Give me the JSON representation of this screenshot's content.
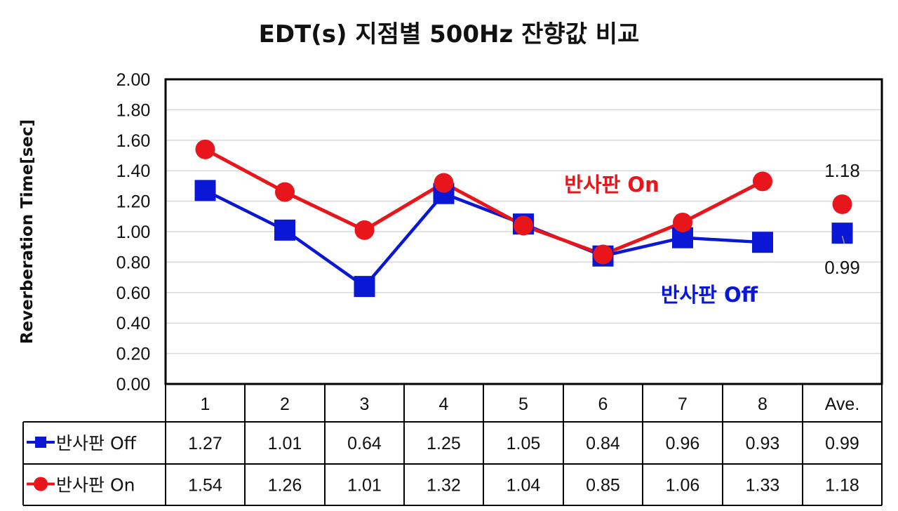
{
  "chart_data": {
    "type": "line",
    "title": "EDT(s) 지점별 500Hz 잔향값 비교",
    "ylabel": "Reverberation Time[sec]",
    "xlabel": "",
    "ylim": [
      0,
      2
    ],
    "yticks": [
      "0.00",
      "0.20",
      "0.40",
      "0.60",
      "0.80",
      "1.00",
      "1.20",
      "1.40",
      "1.60",
      "1.80",
      "2.00"
    ],
    "categories": [
      "1",
      "2",
      "3",
      "4",
      "5",
      "6",
      "7",
      "8",
      "Ave."
    ],
    "grid": true,
    "legend": "data-table-left",
    "series": [
      {
        "name": "반사판 Off",
        "color": "#0a18d6",
        "marker": "square",
        "values": [
          1.27,
          1.01,
          0.64,
          1.25,
          1.05,
          0.84,
          0.96,
          0.93,
          0.99
        ],
        "display": [
          "1.27",
          "1.01",
          "0.64",
          "1.25",
          "1.05",
          "0.84",
          "0.96",
          "0.93",
          "0.99"
        ]
      },
      {
        "name": "반사판 On",
        "color": "#e8161b",
        "marker": "circle",
        "values": [
          1.54,
          1.26,
          1.01,
          1.32,
          1.04,
          0.85,
          1.06,
          1.33,
          1.18
        ],
        "display": [
          "1.54",
          "1.26",
          "1.01",
          "1.32",
          "1.04",
          "0.85",
          "1.06",
          "1.33",
          "1.18"
        ]
      }
    ],
    "annotations": {
      "on_label": "반사판 On",
      "off_label": "반사판 Off",
      "avg_on_label": "1.18",
      "avg_off_label": "0.99"
    }
  }
}
